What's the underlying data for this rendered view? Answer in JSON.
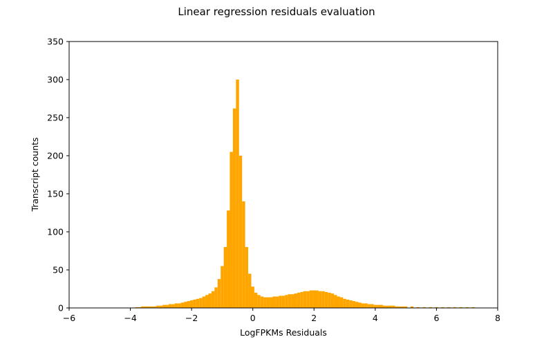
{
  "chart_data": {
    "type": "bar",
    "title": "Linear regression residuals evaluation",
    "xlabel": "LogFPKMs Residuals",
    "ylabel": "Transcript counts",
    "xlim": [
      -6,
      8
    ],
    "ylim": [
      0,
      350
    ],
    "xticks": [
      -6,
      -4,
      -2,
      0,
      2,
      4,
      6,
      8
    ],
    "yticks": [
      0,
      50,
      100,
      150,
      200,
      250,
      300,
      350
    ],
    "xtick_labels": [
      "−6",
      "−4",
      "−2",
      "0",
      "2",
      "4",
      "6",
      "8"
    ],
    "ytick_labels": [
      "0",
      "50",
      "100",
      "150",
      "200",
      "250",
      "300",
      "350"
    ],
    "grid": false,
    "legend": "none",
    "bar_color": "#FFA500",
    "bin_width": 0.1,
    "bins": [
      {
        "x": -3.8,
        "y": 1
      },
      {
        "x": -3.7,
        "y": 1
      },
      {
        "x": -3.6,
        "y": 2
      },
      {
        "x": -3.5,
        "y": 2
      },
      {
        "x": -3.4,
        "y": 2
      },
      {
        "x": -3.3,
        "y": 2
      },
      {
        "x": -3.2,
        "y": 2
      },
      {
        "x": -3.1,
        "y": 3
      },
      {
        "x": -3.0,
        "y": 3
      },
      {
        "x": -2.9,
        "y": 4
      },
      {
        "x": -2.8,
        "y": 4
      },
      {
        "x": -2.7,
        "y": 5
      },
      {
        "x": -2.6,
        "y": 5
      },
      {
        "x": -2.5,
        "y": 6
      },
      {
        "x": -2.4,
        "y": 6
      },
      {
        "x": -2.3,
        "y": 7
      },
      {
        "x": -2.2,
        "y": 8
      },
      {
        "x": -2.1,
        "y": 9
      },
      {
        "x": -2.0,
        "y": 10
      },
      {
        "x": -1.9,
        "y": 11
      },
      {
        "x": -1.8,
        "y": 12
      },
      {
        "x": -1.7,
        "y": 13
      },
      {
        "x": -1.6,
        "y": 15
      },
      {
        "x": -1.5,
        "y": 17
      },
      {
        "x": -1.4,
        "y": 19
      },
      {
        "x": -1.3,
        "y": 22
      },
      {
        "x": -1.2,
        "y": 27
      },
      {
        "x": -1.1,
        "y": 38
      },
      {
        "x": -1.0,
        "y": 55
      },
      {
        "x": -0.9,
        "y": 80
      },
      {
        "x": -0.8,
        "y": 128
      },
      {
        "x": -0.7,
        "y": 205
      },
      {
        "x": -0.6,
        "y": 262
      },
      {
        "x": -0.5,
        "y": 300
      },
      {
        "x": -0.4,
        "y": 200
      },
      {
        "x": -0.3,
        "y": 140
      },
      {
        "x": -0.2,
        "y": 80
      },
      {
        "x": -0.1,
        "y": 45
      },
      {
        "x": 0.0,
        "y": 28
      },
      {
        "x": 0.1,
        "y": 20
      },
      {
        "x": 0.2,
        "y": 17
      },
      {
        "x": 0.3,
        "y": 15
      },
      {
        "x": 0.4,
        "y": 14
      },
      {
        "x": 0.5,
        "y": 14
      },
      {
        "x": 0.6,
        "y": 14
      },
      {
        "x": 0.7,
        "y": 15
      },
      {
        "x": 0.8,
        "y": 15
      },
      {
        "x": 0.9,
        "y": 16
      },
      {
        "x": 1.0,
        "y": 16
      },
      {
        "x": 1.1,
        "y": 17
      },
      {
        "x": 1.2,
        "y": 18
      },
      {
        "x": 1.3,
        "y": 18
      },
      {
        "x": 1.4,
        "y": 19
      },
      {
        "x": 1.5,
        "y": 20
      },
      {
        "x": 1.6,
        "y": 21
      },
      {
        "x": 1.7,
        "y": 22
      },
      {
        "x": 1.8,
        "y": 22
      },
      {
        "x": 1.9,
        "y": 23
      },
      {
        "x": 2.0,
        "y": 23
      },
      {
        "x": 2.1,
        "y": 23
      },
      {
        "x": 2.2,
        "y": 22
      },
      {
        "x": 2.3,
        "y": 22
      },
      {
        "x": 2.4,
        "y": 21
      },
      {
        "x": 2.5,
        "y": 20
      },
      {
        "x": 2.6,
        "y": 19
      },
      {
        "x": 2.7,
        "y": 17
      },
      {
        "x": 2.8,
        "y": 15
      },
      {
        "x": 2.9,
        "y": 14
      },
      {
        "x": 3.0,
        "y": 12
      },
      {
        "x": 3.1,
        "y": 11
      },
      {
        "x": 3.2,
        "y": 10
      },
      {
        "x": 3.3,
        "y": 9
      },
      {
        "x": 3.4,
        "y": 8
      },
      {
        "x": 3.5,
        "y": 7
      },
      {
        "x": 3.6,
        "y": 6
      },
      {
        "x": 3.7,
        "y": 6
      },
      {
        "x": 3.8,
        "y": 5
      },
      {
        "x": 3.9,
        "y": 5
      },
      {
        "x": 4.0,
        "y": 4
      },
      {
        "x": 4.1,
        "y": 4
      },
      {
        "x": 4.2,
        "y": 4
      },
      {
        "x": 4.3,
        "y": 3
      },
      {
        "x": 4.4,
        "y": 3
      },
      {
        "x": 4.5,
        "y": 3
      },
      {
        "x": 4.6,
        "y": 3
      },
      {
        "x": 4.7,
        "y": 2
      },
      {
        "x": 4.8,
        "y": 2
      },
      {
        "x": 4.9,
        "y": 2
      },
      {
        "x": 5.0,
        "y": 2
      },
      {
        "x": 5.2,
        "y": 2
      },
      {
        "x": 5.4,
        "y": 1
      },
      {
        "x": 5.6,
        "y": 1
      },
      {
        "x": 5.8,
        "y": 1
      },
      {
        "x": 6.0,
        "y": 1
      },
      {
        "x": 6.2,
        "y": 1
      },
      {
        "x": 6.4,
        "y": 1
      },
      {
        "x": 6.6,
        "y": 1
      },
      {
        "x": 6.8,
        "y": 1
      },
      {
        "x": 7.0,
        "y": 1
      },
      {
        "x": 7.2,
        "y": 1
      }
    ]
  }
}
